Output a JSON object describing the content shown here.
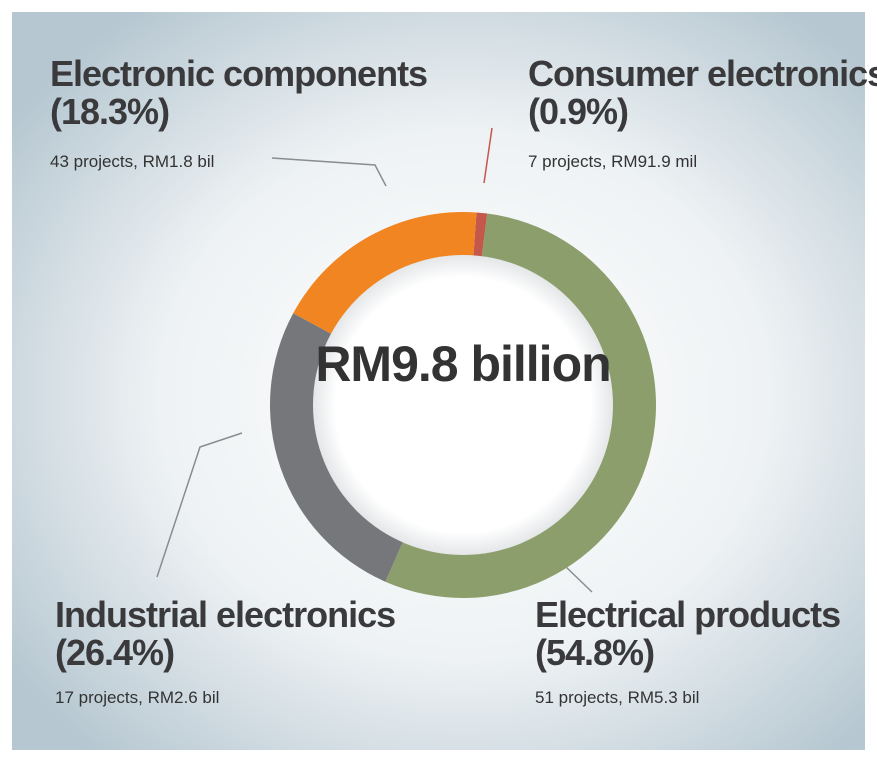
{
  "chart_data": {
    "type": "donut",
    "center_label": "RM9.8 billion",
    "categories": [
      "Consumer electronics",
      "Electrical products",
      "Industrial electronics",
      "Electronic components"
    ],
    "values": [
      0.9,
      54.8,
      26.4,
      18.3
    ],
    "value_labels": [
      "(0.9%)",
      "(54.8%)",
      "(26.4%)",
      "(18.3%)"
    ],
    "details": [
      "7 projects, RM91.9 mil",
      "51 projects, RM5.3 bil",
      "17 projects, RM2.6 bil",
      "43 projects, RM1.8 bil"
    ],
    "colors": [
      "#c4584a",
      "#8c9e6b",
      "#76777b",
      "#f18522"
    ]
  }
}
